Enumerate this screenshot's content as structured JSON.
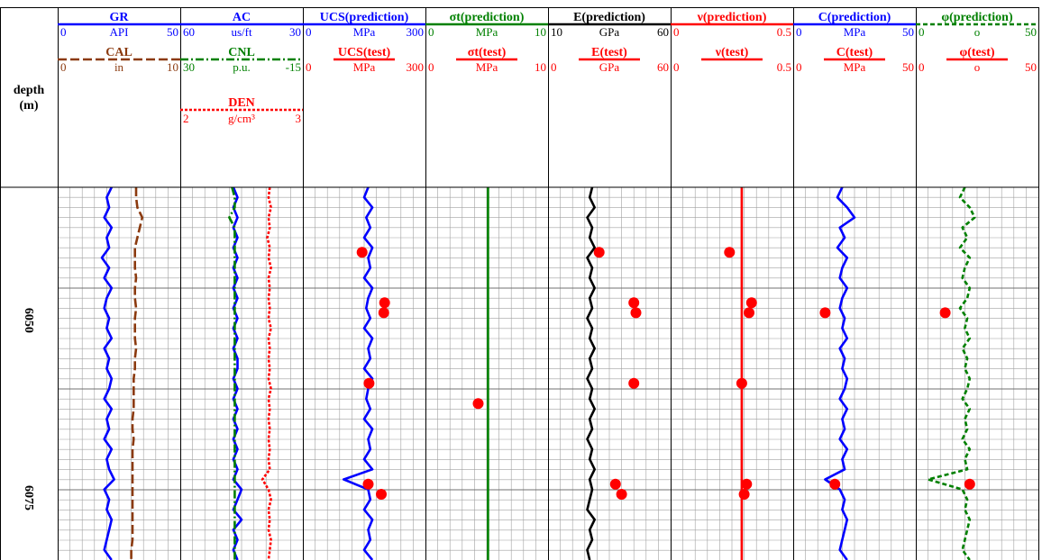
{
  "colors": {
    "blue": "#0000ff",
    "brown": "#8b3a0f",
    "green": "#008000",
    "red": "#ff0000",
    "black": "#000000",
    "grid": "#a0a0a0"
  },
  "depth_header": {
    "label": "depth",
    "unit": "(m)"
  },
  "depth_ticks": [
    {
      "label": "6050",
      "value": 6050
    },
    {
      "label": "6075",
      "value": 6075
    }
  ],
  "tracks": [
    {
      "curves": [
        {
          "name": "GR",
          "min": "0",
          "unit": "API",
          "max": "50",
          "color": "#0000ff",
          "dash": "solid",
          "data": [
            22,
            20,
            21,
            19,
            22,
            20,
            21,
            18,
            21,
            19,
            22,
            20,
            19,
            21,
            20,
            22,
            19,
            21,
            20,
            22,
            21,
            19,
            22,
            20,
            21,
            19,
            22,
            20,
            21,
            23,
            19,
            21,
            20,
            22,
            21,
            20,
            19,
            22
          ]
        },
        {
          "name": "CAL",
          "min": "0",
          "unit": "in",
          "max": "10",
          "color": "#8b3a0f",
          "dash": "longdash",
          "data": [
            6.4,
            6.4,
            6.5,
            6.9,
            6.7,
            6.5,
            6.3,
            6.3,
            6.3,
            6.4,
            6.3,
            6.3,
            6.4,
            6.3,
            6.3,
            6.3,
            6.4,
            6.3,
            6.3,
            6.2,
            6.2,
            6.2,
            6.2,
            6.1,
            6.1,
            6.2,
            6.1,
            6.1,
            6.1,
            6.1,
            6.1,
            6.1,
            6.1,
            6.1,
            6.1,
            6.1,
            6.0,
            6.0
          ]
        }
      ]
    },
    {
      "curves": [
        {
          "name": "AC",
          "min": "60",
          "unit": "us/ft",
          "max": "30",
          "color": "#0000ff",
          "dash": "solid",
          "data": [
            47,
            46,
            47,
            46,
            47,
            46,
            47,
            46,
            47,
            46,
            47,
            46,
            47,
            46,
            47,
            46,
            47,
            46,
            46,
            47,
            46,
            47,
            46,
            47,
            46,
            47,
            46,
            47,
            46,
            47,
            45,
            46,
            47,
            45,
            47,
            46,
            47,
            46
          ]
        },
        {
          "name": "CNL",
          "min": "30",
          "unit": "p.u.",
          "max": "-15",
          "color": "#008000",
          "dash": "dashdot",
          "data": [
            11,
            10,
            10,
            12,
            10,
            10,
            10,
            10,
            10,
            10,
            10,
            10,
            10,
            10,
            10,
            10,
            10,
            10,
            10,
            10,
            10,
            10,
            10,
            10,
            10,
            10,
            10,
            10,
            10,
            10,
            10,
            10,
            10,
            10,
            10,
            10,
            10,
            10
          ]
        },
        {
          "name": "DEN",
          "min": "2",
          "unit": "g/cm³",
          "max": "3",
          "color": "#ff0000",
          "dash": "dotted",
          "data": [
            2.73,
            2.72,
            2.74,
            2.72,
            2.73,
            2.71,
            2.73,
            2.72,
            2.74,
            2.72,
            2.73,
            2.72,
            2.73,
            2.72,
            2.74,
            2.72,
            2.73,
            2.72,
            2.73,
            2.72,
            2.74,
            2.72,
            2.73,
            2.72,
            2.73,
            2.72,
            2.73,
            2.72,
            2.73,
            2.67,
            2.72,
            2.74,
            2.72,
            2.73,
            2.72,
            2.74,
            2.73,
            2.72
          ]
        }
      ]
    },
    {
      "curves": [
        {
          "name": "UCS(prediction)",
          "min": "0",
          "unit": "MPa",
          "max": "300",
          "color": "#0000ff",
          "dash": "solid",
          "data": [
            160,
            150,
            170,
            155,
            165,
            150,
            170,
            160,
            165,
            150,
            170,
            160,
            155,
            165,
            150,
            170,
            160,
            165,
            150,
            170,
            160,
            155,
            165,
            150,
            170,
            160,
            165,
            150,
            170,
            100,
            160,
            165,
            150,
            170,
            160,
            165,
            150,
            170
          ]
        },
        {
          "name": "UCS(test)",
          "min": "0",
          "unit": "MPa",
          "max": "300",
          "color": "#ff0000",
          "dash": "solid",
          "points": [
            {
              "row": 6,
              "v": 145
            },
            {
              "row": 11,
              "v": 200
            },
            {
              "row": 12,
              "v": 198
            },
            {
              "row": 19,
              "v": 162
            },
            {
              "row": 23,
              "v": null
            },
            {
              "row": 29,
              "v": 160
            },
            {
              "row": 30,
              "v": 192
            }
          ]
        }
      ]
    },
    {
      "curves": [
        {
          "name": "σt(prediction)",
          "min": "0",
          "unit": "MPa",
          "max": "10",
          "color": "#008000",
          "dash": "solid",
          "data": [
            5.1,
            5.1,
            5.1,
            5.1,
            5.1,
            5.1,
            5.1,
            5.1,
            5.1,
            5.1,
            5.1,
            5.1,
            5.1,
            5.1,
            5.1,
            5.1,
            5.1,
            5.1,
            5.1,
            5.1,
            5.1,
            5.1,
            5.1,
            5.1,
            5.1,
            5.1,
            5.1,
            5.1,
            5.1,
            5.1,
            5.1,
            5.1,
            5.1,
            5.1,
            5.1,
            5.1,
            5.1,
            5.1
          ]
        },
        {
          "name": "σt(test)",
          "min": "0",
          "unit": "MPa",
          "max": "10",
          "color": "#ff0000",
          "dash": "solid",
          "points": [
            {
              "row": 21,
              "v": 4.3
            }
          ]
        }
      ]
    },
    {
      "curves": [
        {
          "name": "E(prediction)",
          "min": "10",
          "unit": "GPa",
          "max": "60",
          "color": "#000000",
          "dash": "solid",
          "data": [
            28,
            27,
            29,
            26,
            28,
            27,
            29,
            26,
            28,
            27,
            29,
            27,
            28,
            26,
            28,
            27,
            29,
            27,
            28,
            26,
            28,
            27,
            29,
            27,
            28,
            26,
            28,
            27,
            29,
            27,
            28,
            27,
            26,
            29,
            27,
            28,
            26,
            27
          ]
        },
        {
          "name": "E(test)",
          "min": "0",
          "unit": "GPa",
          "max": "60",
          "color": "#ff0000",
          "dash": "solid",
          "points": [
            {
              "row": 6,
              "v": 25
            },
            {
              "row": 11,
              "v": 42
            },
            {
              "row": 12,
              "v": 43
            },
            {
              "row": 19,
              "v": 42
            },
            {
              "row": 29,
              "v": 33
            },
            {
              "row": 30,
              "v": 36
            }
          ]
        }
      ]
    },
    {
      "curves": [
        {
          "name": "ν(prediction)",
          "min": "0",
          "unit": "",
          "max": "0.5",
          "color": "#ff0000",
          "dash": "solid",
          "data": [
            0.29,
            0.29,
            0.29,
            0.29,
            0.29,
            0.29,
            0.29,
            0.29,
            0.29,
            0.29,
            0.29,
            0.29,
            0.29,
            0.29,
            0.29,
            0.29,
            0.29,
            0.29,
            0.29,
            0.29,
            0.29,
            0.29,
            0.29,
            0.29,
            0.29,
            0.29,
            0.29,
            0.29,
            0.29,
            0.29,
            0.29,
            0.29,
            0.29,
            0.29,
            0.29,
            0.29,
            0.29,
            0.29
          ]
        },
        {
          "name": "ν(test)",
          "min": "0",
          "unit": "",
          "max": "0.5",
          "color": "#ff0000",
          "dash": "solid",
          "points": [
            {
              "row": 6,
              "v": 0.24
            },
            {
              "row": 11,
              "v": 0.33
            },
            {
              "row": 12,
              "v": 0.32
            },
            {
              "row": 19,
              "v": 0.29
            },
            {
              "row": 29,
              "v": 0.31
            },
            {
              "row": 30,
              "v": 0.3
            }
          ]
        }
      ]
    },
    {
      "curves": [
        {
          "name": "C(prediction)",
          "min": "0",
          "unit": "MPa",
          "max": "50",
          "color": "#0000ff",
          "dash": "solid",
          "data": [
            20,
            18,
            22,
            25,
            19,
            21,
            18,
            22,
            20,
            19,
            22,
            20,
            19,
            21,
            20,
            22,
            19,
            21,
            20,
            22,
            21,
            19,
            22,
            20,
            21,
            19,
            22,
            20,
            21,
            13,
            19,
            21,
            20,
            22,
            21,
            20,
            19,
            22
          ]
        },
        {
          "name": "C(test)",
          "min": "0",
          "unit": "MPa",
          "max": "50",
          "color": "#ff0000",
          "dash": "solid",
          "points": [
            {
              "row": 12,
              "v": 13
            },
            {
              "row": 29,
              "v": 17
            }
          ]
        }
      ]
    },
    {
      "curves": [
        {
          "name": "φ(prediction)",
          "min": "0",
          "unit": "o",
          "max": "50",
          "color": "#008000",
          "dash": "dashed",
          "data": [
            20,
            18,
            22,
            24,
            19,
            21,
            18,
            22,
            20,
            19,
            22,
            21,
            18,
            21,
            20,
            22,
            19,
            21,
            20,
            22,
            21,
            19,
            22,
            20,
            21,
            19,
            22,
            20,
            21,
            5,
            19,
            21,
            20,
            22,
            21,
            20,
            19,
            22
          ]
        },
        {
          "name": "φ(test)",
          "min": "0",
          "unit": "o",
          "max": "50",
          "color": "#ff0000",
          "dash": "solid",
          "points": [
            {
              "row": 12,
              "v": 12
            },
            {
              "row": 29,
              "v": 22
            }
          ]
        }
      ]
    }
  ],
  "chart_data": {
    "type": "line",
    "ylabel": "depth (m)",
    "y_ticks": [
      6050,
      6075
    ],
    "y_axis_inverted": true,
    "grid": true,
    "note": "well-log panel; each track lists curve name, scale min, unit, scale max; values read as estimates"
  }
}
